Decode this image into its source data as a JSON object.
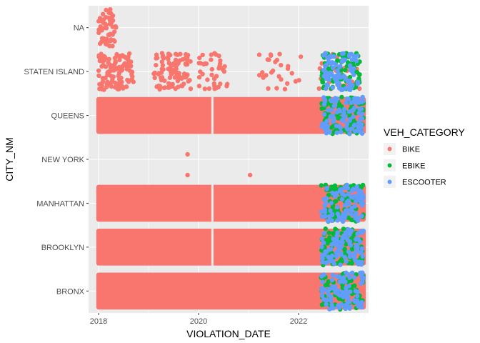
{
  "chart_data": {
    "type": "scatter",
    "xlabel": "VIOLATION_DATE",
    "ylabel": "CITY_NM",
    "categories": [
      "BRONX",
      "BROOKLYN",
      "MANHATTAN",
      "NEW YORK",
      "QUEENS",
      "STATEN ISLAND",
      "NA"
    ],
    "x_ticks": [
      2018,
      2020,
      2022
    ],
    "xlim": [
      2017.8,
      2023.4
    ],
    "jitter": "vertical jitter within each category band",
    "legend": {
      "title": "VEH_CATEGORY",
      "placement": "right",
      "entries": [
        {
          "name": "BIKE",
          "color": "#F8766D"
        },
        {
          "name": "EBIKE",
          "color": "#00BA38"
        },
        {
          "name": "ESCOOTER",
          "color": "#619CFF"
        }
      ]
    },
    "series": [
      {
        "name": "BIKE",
        "color": "#F8766D",
        "points": [
          {
            "category": "NA",
            "x_range": [
              2018.0,
              2018.35
            ],
            "density": "sparse"
          },
          {
            "category": "STATEN ISLAND",
            "x_range": [
              2018.0,
              2023.2
            ],
            "density": "clustered"
          },
          {
            "category": "QUEENS",
            "x_range": [
              2018.0,
              2023.3
            ],
            "density": "dense"
          },
          {
            "category": "NEW YORK",
            "x": [
              2019.78,
              2019.78,
              2021.03
            ]
          },
          {
            "category": "MANHATTAN",
            "x_range": [
              2018.0,
              2023.3
            ],
            "density": "dense"
          },
          {
            "category": "BROOKLYN",
            "x_range": [
              2018.0,
              2023.3
            ],
            "density": "dense"
          },
          {
            "category": "BRONX",
            "x_range": [
              2018.0,
              2023.3
            ],
            "density": "dense"
          }
        ]
      },
      {
        "name": "EBIKE",
        "color": "#00BA38",
        "points": [
          {
            "category": "STATEN ISLAND",
            "x_range": [
              2022.45,
              2023.25
            ]
          },
          {
            "category": "QUEENS",
            "x_range": [
              2022.45,
              2023.3
            ]
          },
          {
            "category": "MANHATTAN",
            "x_range": [
              2022.45,
              2023.3
            ]
          },
          {
            "category": "BROOKLYN",
            "x_range": [
              2022.45,
              2023.3
            ]
          },
          {
            "category": "BRONX",
            "x_range": [
              2022.45,
              2023.3
            ]
          }
        ]
      },
      {
        "name": "ESCOOTER",
        "color": "#619CFF",
        "points": [
          {
            "category": "STATEN ISLAND",
            "x_range": [
              2022.5,
              2023.2
            ]
          },
          {
            "category": "QUEENS",
            "x_range": [
              2022.45,
              2023.3
            ]
          },
          {
            "category": "MANHATTAN",
            "x_range": [
              2022.45,
              2023.3
            ]
          },
          {
            "category": "BROOKLYN",
            "x_range": [
              2022.45,
              2023.3
            ]
          },
          {
            "category": "BRONX",
            "x_range": [
              2022.45,
              2023.3
            ]
          }
        ]
      }
    ],
    "grid": true,
    "panel_background": "#EBEBEB",
    "grid_color": "#FFFFFF"
  }
}
